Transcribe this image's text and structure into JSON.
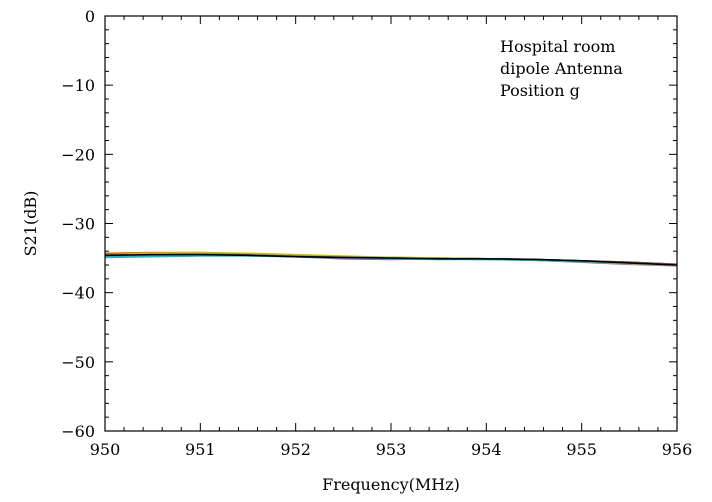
{
  "chart_data": {
    "type": "line",
    "xlabel": "Frequency(MHz)",
    "ylabel": "S21(dB)",
    "xlim": [
      950,
      956
    ],
    "ylim": [
      -60,
      0
    ],
    "x_ticks": [
      950,
      951,
      952,
      953,
      954,
      955,
      956
    ],
    "y_ticks": [
      0,
      -10,
      -20,
      -30,
      -40,
      -50,
      -60
    ],
    "x_tick_labels": [
      "950",
      "951",
      "952",
      "953",
      "954",
      "955",
      "956"
    ],
    "y_tick_labels": [
      "0",
      "−10",
      "−20",
      "−30",
      "−40",
      "−50",
      "−60"
    ],
    "annotations": [
      "Hospital room",
      "dipole Antenna",
      "Position g"
    ],
    "grid": false,
    "series": [
      {
        "color": "#1f77b4",
        "x": [
          950,
          950.5,
          951,
          951.5,
          952,
          952.5,
          953,
          953.5,
          954,
          954.5,
          955,
          955.5,
          956
        ],
        "y": [
          -34.6,
          -34.5,
          -34.5,
          -34.6,
          -34.8,
          -35.0,
          -35.1,
          -35.1,
          -35.2,
          -35.3,
          -35.5,
          -35.7,
          -36.0
        ]
      },
      {
        "color": "#ff7f0e",
        "x": [
          950,
          950.5,
          951,
          951.5,
          952,
          952.5,
          953,
          953.5,
          954,
          954.5,
          955,
          955.5,
          956
        ],
        "y": [
          -34.3,
          -34.2,
          -34.2,
          -34.4,
          -34.6,
          -34.8,
          -35.0,
          -35.1,
          -35.1,
          -35.3,
          -35.5,
          -35.8,
          -36.1
        ]
      },
      {
        "color": "#2ca02c",
        "x": [
          950,
          950.5,
          951,
          951.5,
          952,
          952.5,
          953,
          953.5,
          954,
          954.5,
          955,
          955.5,
          956
        ],
        "y": [
          -34.8,
          -34.7,
          -34.6,
          -34.6,
          -34.7,
          -34.9,
          -35.0,
          -35.0,
          -35.1,
          -35.2,
          -35.4,
          -35.7,
          -36.0
        ]
      },
      {
        "color": "#d62728",
        "x": [
          950,
          950.5,
          951,
          951.5,
          952,
          952.5,
          953,
          953.5,
          954,
          954.5,
          955,
          955.5,
          956
        ],
        "y": [
          -34.5,
          -34.4,
          -34.4,
          -34.5,
          -34.7,
          -34.9,
          -35.0,
          -35.0,
          -35.1,
          -35.3,
          -35.4,
          -35.6,
          -35.9
        ]
      },
      {
        "color": "#9467bd",
        "x": [
          950,
          950.5,
          951,
          951.5,
          952,
          952.5,
          953,
          953.5,
          954,
          954.5,
          955,
          955.5,
          956
        ],
        "y": [
          -34.7,
          -34.6,
          -34.5,
          -34.6,
          -34.8,
          -35.1,
          -35.2,
          -35.1,
          -35.1,
          -35.3,
          -35.6,
          -35.9,
          -36.1
        ]
      },
      {
        "color": "#8c564b",
        "x": [
          950,
          950.5,
          951,
          951.5,
          952,
          952.5,
          953,
          953.5,
          954,
          954.5,
          955,
          955.5,
          956
        ],
        "y": [
          -34.4,
          -34.3,
          -34.3,
          -34.5,
          -34.7,
          -34.8,
          -34.9,
          -35.0,
          -35.1,
          -35.2,
          -35.4,
          -35.6,
          -35.9
        ]
      },
      {
        "color": "#bcbd22",
        "x": [
          950,
          950.5,
          951,
          951.5,
          952,
          952.5,
          953,
          953.5,
          954,
          954.5,
          955,
          955.5,
          956
        ],
        "y": [
          -34.5,
          -34.3,
          -34.2,
          -34.3,
          -34.5,
          -34.7,
          -34.9,
          -35.0,
          -35.1,
          -35.3,
          -35.5,
          -35.8,
          -36.0
        ]
      },
      {
        "color": "#17becf",
        "x": [
          950,
          950.5,
          951,
          951.5,
          952,
          952.5,
          953,
          953.5,
          954,
          954.5,
          955,
          955.5,
          956
        ],
        "y": [
          -34.9,
          -34.8,
          -34.7,
          -34.7,
          -34.8,
          -34.9,
          -35.1,
          -35.2,
          -35.2,
          -35.3,
          -35.5,
          -35.7,
          -36.0
        ]
      },
      {
        "color": "#000000",
        "x": [
          950,
          950.5,
          951,
          951.5,
          952,
          952.5,
          953,
          953.5,
          954,
          954.5,
          955,
          955.5,
          956
        ],
        "y": [
          -34.6,
          -34.5,
          -34.5,
          -34.6,
          -34.8,
          -34.9,
          -35.0,
          -35.1,
          -35.1,
          -35.2,
          -35.4,
          -35.7,
          -36.0
        ]
      }
    ]
  }
}
